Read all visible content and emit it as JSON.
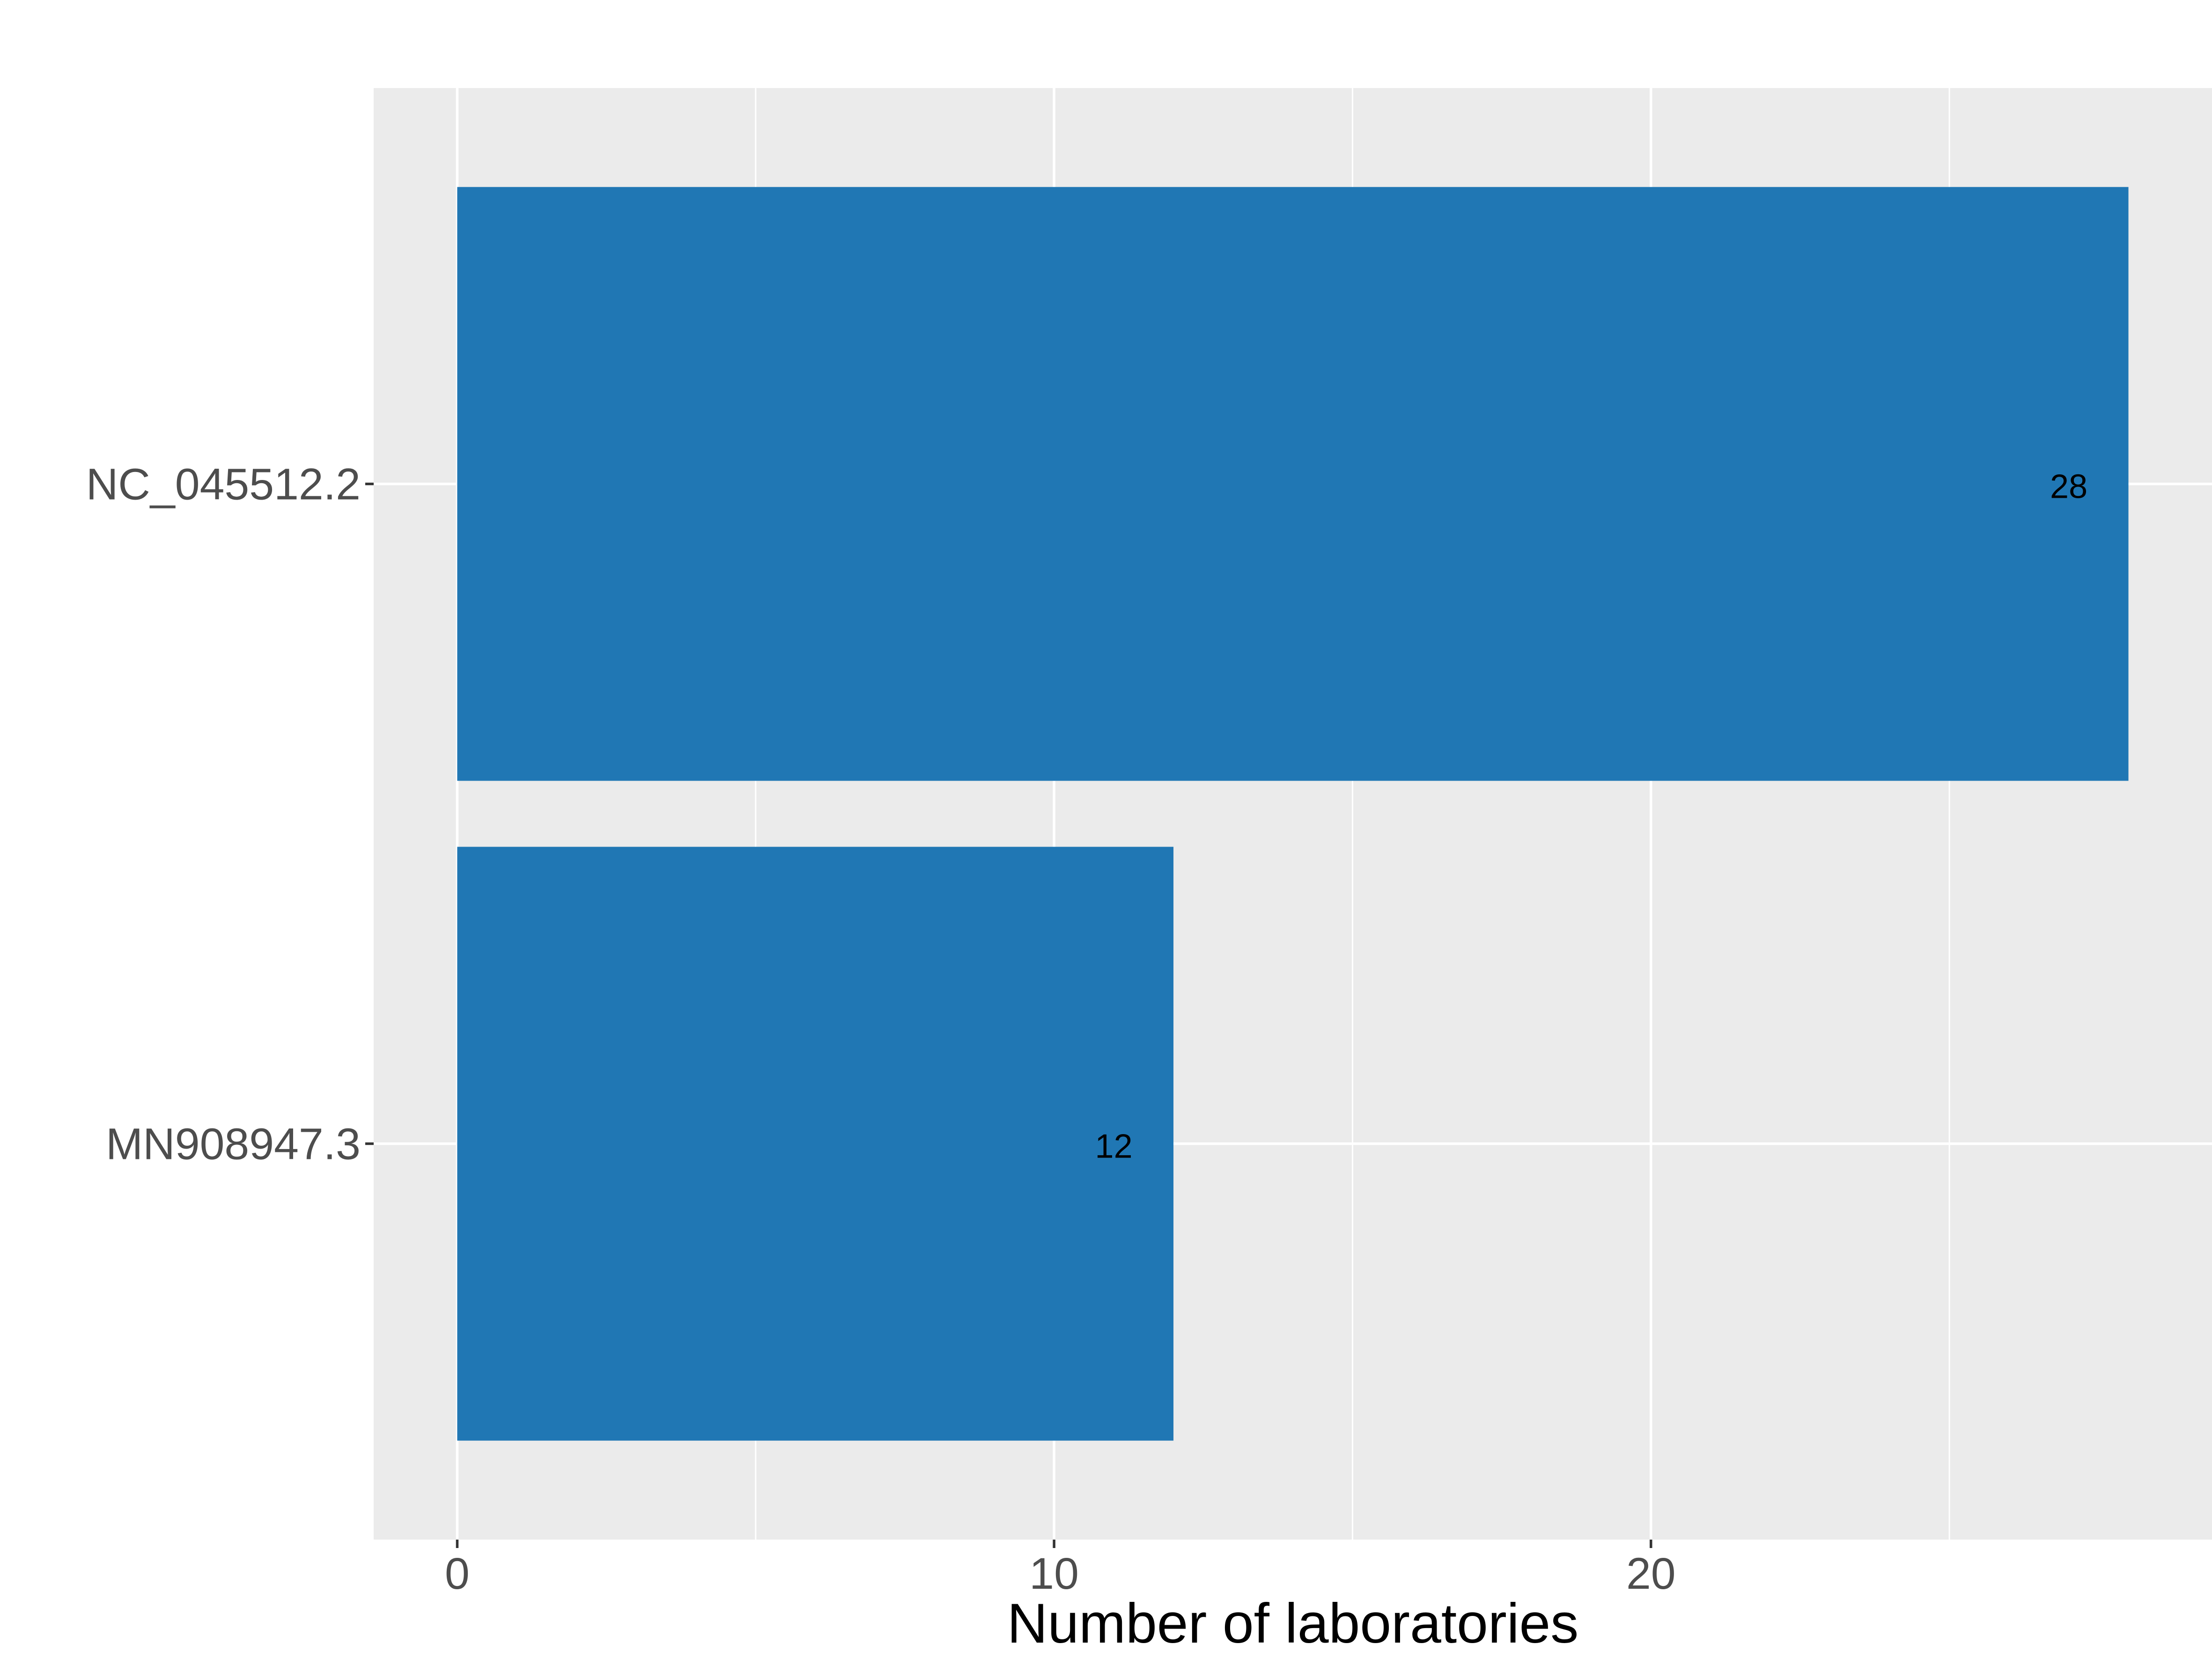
{
  "chart_data": {
    "type": "bar",
    "orientation": "horizontal",
    "categories": [
      "NC_045512.2",
      "MN908947.3"
    ],
    "values": [
      28,
      12
    ],
    "data_labels": [
      "28",
      "12"
    ],
    "xlabel": "Number of laboratories",
    "ylabel": "",
    "title": "",
    "xlim": [
      -1.4,
      29.4
    ],
    "x_ticks": [
      0,
      10,
      20
    ],
    "x_tick_labels": [
      "0",
      "10",
      "20"
    ],
    "x_minor_ticks": [
      5,
      15,
      25
    ],
    "grid": true,
    "legend": "none",
    "colors": {
      "bar": "#2077b4",
      "panel_background": "#ebebeb",
      "grid": "#ffffff",
      "tick_label": "#4d4d4d"
    }
  }
}
